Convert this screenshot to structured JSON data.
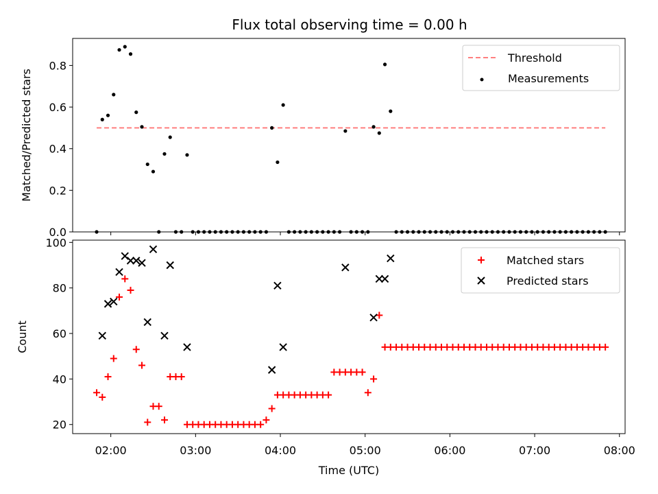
{
  "chart_data": {
    "type": "scatter",
    "title": "Flux total observing time = 0.00 h",
    "xlabel": "Time (UTC)",
    "xlim": [
      "01:33",
      "08:04"
    ],
    "x_ticks": [
      "02:00",
      "03:00",
      "04:00",
      "05:00",
      "06:00",
      "07:00",
      "08:00"
    ],
    "shared_x": true,
    "panels": [
      {
        "ylabel": "Matched/Predicted stars",
        "ylim": [
          0,
          0.93
        ],
        "y_ticks": [
          "0.0",
          "0.2",
          "0.4",
          "0.6",
          "0.8"
        ],
        "legend_position": "upper-right",
        "threshold": {
          "name": "Threshold",
          "value": 0.5,
          "x_range": [
            "01:50",
            "07:50"
          ],
          "color": "#ff7f7f",
          "style": "dashed"
        },
        "series": [
          {
            "name": "Measurements",
            "marker": "dot",
            "color": "#000000",
            "points": [
              [
                "01:50",
                0.0
              ],
              [
                "01:54",
                0.54
              ],
              [
                "01:58",
                0.56
              ],
              [
                "02:02",
                0.66
              ],
              [
                "02:06",
                0.875
              ],
              [
                "02:10",
                0.89
              ],
              [
                "02:14",
                0.855
              ],
              [
                "02:18",
                0.575
              ],
              [
                "02:22",
                0.505
              ],
              [
                "02:26",
                0.325
              ],
              [
                "02:30",
                0.29
              ],
              [
                "02:34",
                0.0
              ],
              [
                "02:38",
                0.375
              ],
              [
                "02:42",
                0.455
              ],
              [
                "02:46",
                0.0
              ],
              [
                "02:50",
                0.0
              ],
              [
                "02:54",
                0.37
              ],
              [
                "02:58",
                0.0
              ],
              [
                "03:02",
                0.0
              ],
              [
                "03:06",
                0.0
              ],
              [
                "03:10",
                0.0
              ],
              [
                "03:14",
                0.0
              ],
              [
                "03:18",
                0.0
              ],
              [
                "03:22",
                0.0
              ],
              [
                "03:26",
                0.0
              ],
              [
                "03:30",
                0.0
              ],
              [
                "03:34",
                0.0
              ],
              [
                "03:38",
                0.0
              ],
              [
                "03:42",
                0.0
              ],
              [
                "03:46",
                0.0
              ],
              [
                "03:50",
                0.0
              ],
              [
                "03:54",
                0.5
              ],
              [
                "03:58",
                0.335
              ],
              [
                "04:02",
                0.61
              ],
              [
                "04:06",
                0.0
              ],
              [
                "04:10",
                0.0
              ],
              [
                "04:14",
                0.0
              ],
              [
                "04:18",
                0.0
              ],
              [
                "04:22",
                0.0
              ],
              [
                "04:26",
                0.0
              ],
              [
                "04:30",
                0.0
              ],
              [
                "04:34",
                0.0
              ],
              [
                "04:38",
                0.0
              ],
              [
                "04:42",
                0.0
              ],
              [
                "04:46",
                0.485
              ],
              [
                "04:50",
                0.0
              ],
              [
                "04:54",
                0.0
              ],
              [
                "04:58",
                0.0
              ],
              [
                "05:02",
                0.0
              ],
              [
                "05:06",
                0.505
              ],
              [
                "05:10",
                0.475
              ],
              [
                "05:14",
                0.805
              ],
              [
                "05:18",
                0.58
              ],
              [
                "05:22",
                0.0
              ],
              [
                "05:26",
                0.0
              ],
              [
                "05:30",
                0.0
              ],
              [
                "05:34",
                0.0
              ],
              [
                "05:38",
                0.0
              ],
              [
                "05:42",
                0.0
              ],
              [
                "05:46",
                0.0
              ],
              [
                "05:50",
                0.0
              ],
              [
                "05:54",
                0.0
              ],
              [
                "05:58",
                0.0
              ],
              [
                "06:02",
                0.0
              ],
              [
                "06:06",
                0.0
              ],
              [
                "06:10",
                0.0
              ],
              [
                "06:14",
                0.0
              ],
              [
                "06:18",
                0.0
              ],
              [
                "06:22",
                0.0
              ],
              [
                "06:26",
                0.0
              ],
              [
                "06:30",
                0.0
              ],
              [
                "06:34",
                0.0
              ],
              [
                "06:38",
                0.0
              ],
              [
                "06:42",
                0.0
              ],
              [
                "06:46",
                0.0
              ],
              [
                "06:50",
                0.0
              ],
              [
                "06:54",
                0.0
              ],
              [
                "06:58",
                0.0
              ],
              [
                "07:02",
                0.0
              ],
              [
                "07:06",
                0.0
              ],
              [
                "07:10",
                0.0
              ],
              [
                "07:14",
                0.0
              ],
              [
                "07:18",
                0.0
              ],
              [
                "07:22",
                0.0
              ],
              [
                "07:26",
                0.0
              ],
              [
                "07:30",
                0.0
              ],
              [
                "07:34",
                0.0
              ],
              [
                "07:38",
                0.0
              ],
              [
                "07:42",
                0.0
              ],
              [
                "07:46",
                0.0
              ],
              [
                "07:50",
                0.0
              ]
            ]
          }
        ]
      },
      {
        "ylabel": "Count",
        "ylim": [
          16,
          101
        ],
        "y_ticks": [
          "20",
          "40",
          "60",
          "80",
          "100"
        ],
        "legend_position": "upper-right",
        "series": [
          {
            "name": "Matched stars",
            "marker": "plus",
            "color": "#ff0000",
            "points": [
              [
                "01:50",
                34
              ],
              [
                "01:54",
                32
              ],
              [
                "01:58",
                41
              ],
              [
                "02:02",
                49
              ],
              [
                "02:06",
                76
              ],
              [
                "02:10",
                84
              ],
              [
                "02:14",
                79
              ],
              [
                "02:18",
                53
              ],
              [
                "02:22",
                46
              ],
              [
                "02:26",
                21
              ],
              [
                "02:30",
                28
              ],
              [
                "02:34",
                28
              ],
              [
                "02:38",
                22
              ],
              [
                "02:42",
                41
              ],
              [
                "02:46",
                41
              ],
              [
                "02:50",
                41
              ],
              [
                "02:54",
                20
              ],
              [
                "02:58",
                20
              ],
              [
                "03:02",
                20
              ],
              [
                "03:06",
                20
              ],
              [
                "03:10",
                20
              ],
              [
                "03:14",
                20
              ],
              [
                "03:18",
                20
              ],
              [
                "03:22",
                20
              ],
              [
                "03:26",
                20
              ],
              [
                "03:30",
                20
              ],
              [
                "03:34",
                20
              ],
              [
                "03:38",
                20
              ],
              [
                "03:42",
                20
              ],
              [
                "03:46",
                20
              ],
              [
                "03:50",
                22
              ],
              [
                "03:54",
                27
              ],
              [
                "03:58",
                33
              ],
              [
                "04:02",
                33
              ],
              [
                "04:06",
                33
              ],
              [
                "04:10",
                33
              ],
              [
                "04:14",
                33
              ],
              [
                "04:18",
                33
              ],
              [
                "04:22",
                33
              ],
              [
                "04:26",
                33
              ],
              [
                "04:30",
                33
              ],
              [
                "04:34",
                33
              ],
              [
                "04:38",
                43
              ],
              [
                "04:42",
                43
              ],
              [
                "04:46",
                43
              ],
              [
                "04:50",
                43
              ],
              [
                "04:54",
                43
              ],
              [
                "04:58",
                43
              ],
              [
                "05:02",
                34
              ],
              [
                "05:06",
                40
              ],
              [
                "05:10",
                68
              ],
              [
                "05:14",
                54
              ],
              [
                "05:18",
                54
              ],
              [
                "05:22",
                54
              ],
              [
                "05:26",
                54
              ],
              [
                "05:30",
                54
              ],
              [
                "05:34",
                54
              ],
              [
                "05:38",
                54
              ],
              [
                "05:42",
                54
              ],
              [
                "05:46",
                54
              ],
              [
                "05:50",
                54
              ],
              [
                "05:54",
                54
              ],
              [
                "05:58",
                54
              ],
              [
                "06:02",
                54
              ],
              [
                "06:06",
                54
              ],
              [
                "06:10",
                54
              ],
              [
                "06:14",
                54
              ],
              [
                "06:18",
                54
              ],
              [
                "06:22",
                54
              ],
              [
                "06:26",
                54
              ],
              [
                "06:30",
                54
              ],
              [
                "06:34",
                54
              ],
              [
                "06:38",
                54
              ],
              [
                "06:42",
                54
              ],
              [
                "06:46",
                54
              ],
              [
                "06:50",
                54
              ],
              [
                "06:54",
                54
              ],
              [
                "06:58",
                54
              ],
              [
                "07:02",
                54
              ],
              [
                "07:06",
                54
              ],
              [
                "07:10",
                54
              ],
              [
                "07:14",
                54
              ],
              [
                "07:18",
                54
              ],
              [
                "07:22",
                54
              ],
              [
                "07:26",
                54
              ],
              [
                "07:30",
                54
              ],
              [
                "07:34",
                54
              ],
              [
                "07:38",
                54
              ],
              [
                "07:42",
                54
              ],
              [
                "07:46",
                54
              ],
              [
                "07:50",
                54
              ]
            ]
          },
          {
            "name": "Predicted stars",
            "marker": "x",
            "color": "#000000",
            "points": [
              [
                "01:54",
                59
              ],
              [
                "01:58",
                73
              ],
              [
                "02:02",
                74
              ],
              [
                "02:06",
                87
              ],
              [
                "02:10",
                94
              ],
              [
                "02:14",
                92
              ],
              [
                "02:18",
                92
              ],
              [
                "02:22",
                91
              ],
              [
                "02:26",
                65
              ],
              [
                "02:30",
                97
              ],
              [
                "02:38",
                59
              ],
              [
                "02:42",
                90
              ],
              [
                "02:54",
                54
              ],
              [
                "03:54",
                44
              ],
              [
                "03:58",
                81
              ],
              [
                "04:02",
                54
              ],
              [
                "04:46",
                89
              ],
              [
                "05:06",
                67
              ],
              [
                "05:10",
                84
              ],
              [
                "05:14",
                84
              ],
              [
                "05:18",
                93
              ]
            ]
          }
        ]
      }
    ]
  }
}
